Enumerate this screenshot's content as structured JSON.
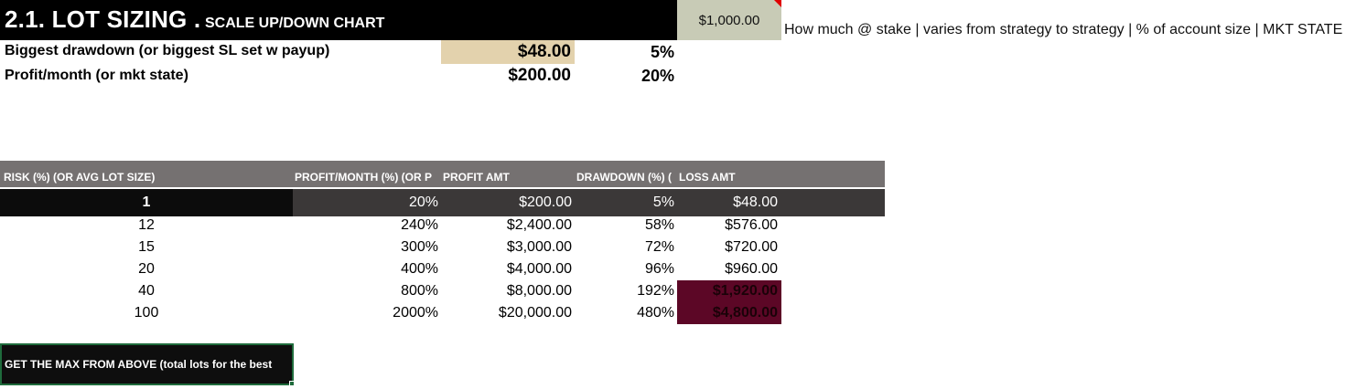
{
  "title": {
    "main": "2.1. LOT SIZING .",
    "sub": "SCALE UP/DOWN CHART"
  },
  "account": {
    "value": "$1,000.00",
    "note": "How much @ stake | varies from strategy to strategy | % of account size | MKT STATE"
  },
  "params": {
    "drawdown": {
      "label": "Biggest drawdown (or biggest SL set w payup)",
      "amount": "$48.00",
      "pct": "5%"
    },
    "profit": {
      "label": "Profit/month (or mkt state)",
      "amount": "$200.00",
      "pct": "20%"
    }
  },
  "table": {
    "headers": {
      "risk": "RISK (%) (OR AVG LOT SIZE)",
      "profit_pct": "PROFIT/MONTH (%) (OR P",
      "profit_amt": "PROFIT AMT",
      "dd_pct": "DRAWDOWN (%) (",
      "loss_amt": "LOSS AMT"
    },
    "rows": [
      {
        "risk": "1",
        "profit_pct": "20%",
        "profit_amt": "$200.00",
        "dd_pct": "5%",
        "loss_amt": "$48.00"
      },
      {
        "risk": "12",
        "profit_pct": "240%",
        "profit_amt": "$2,400.00",
        "dd_pct": "58%",
        "loss_amt": "$576.00"
      },
      {
        "risk": "15",
        "profit_pct": "300%",
        "profit_amt": "$3,000.00",
        "dd_pct": "72%",
        "loss_amt": "$720.00"
      },
      {
        "risk": "20",
        "profit_pct": "400%",
        "profit_amt": "$4,000.00",
        "dd_pct": "96%",
        "loss_amt": "$960.00"
      },
      {
        "risk": "40",
        "profit_pct": "800%",
        "profit_amt": "$8,000.00",
        "dd_pct": "192%",
        "loss_amt": "$1,920.00"
      },
      {
        "risk": "100",
        "profit_pct": "2000%",
        "profit_amt": "$20,000.00",
        "dd_pct": "480%",
        "loss_amt": "$4,800.00"
      }
    ]
  },
  "max_button": {
    "label": "GET THE MAX FROM ABOVE (total lots for the best"
  },
  "colors": {
    "header_bg": "#757171",
    "row_first_bg": "#3b3838",
    "danger": "#5c0726",
    "account_cell": "#c8cbb6",
    "drawdown_cell": "#e3d2ad",
    "selection_border": "#1f6b3c"
  }
}
